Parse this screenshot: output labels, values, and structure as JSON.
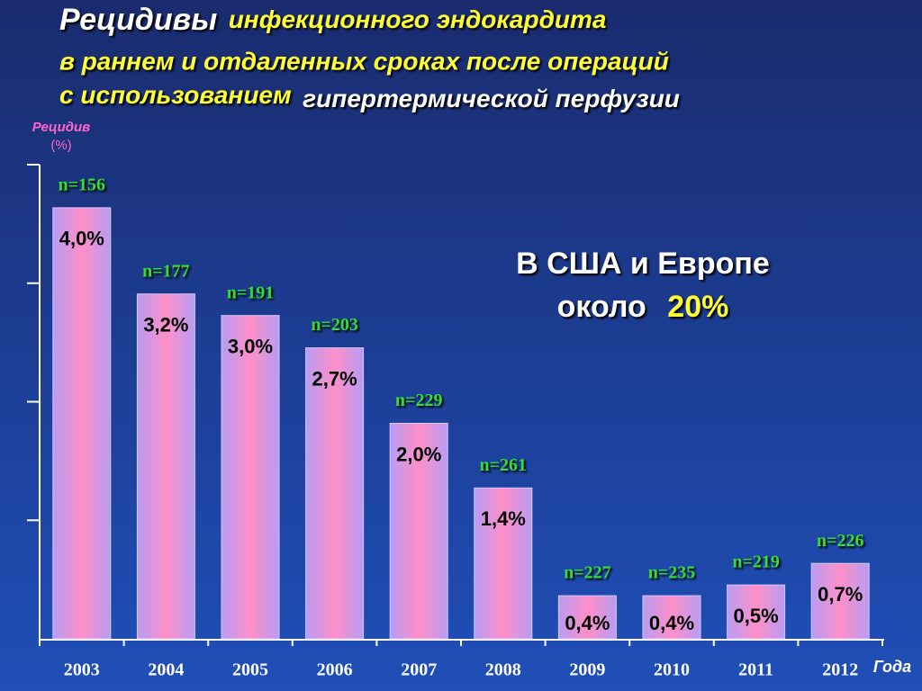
{
  "chart_data": {
    "type": "bar",
    "title": {
      "lines": [
        [
          "Рецидивы",
          "инфекционного эндокардита"
        ],
        [
          "в раннем и отдаленных сроках после операций"
        ],
        [
          "с использованием",
          "гипертермической перфузии"
        ]
      ]
    },
    "y_label": [
      "Рецидив",
      "(%)"
    ],
    "x_label": "Года",
    "categories": [
      "2003",
      "2004",
      "2005",
      "2006",
      "2007",
      "2008",
      "2009",
      "2010",
      "2011",
      "2012"
    ],
    "values": [
      4.0,
      3.2,
      3.0,
      2.7,
      2.0,
      1.4,
      0.4,
      0.4,
      0.5,
      0.7
    ],
    "value_labels": [
      "4,0%",
      "3,2%",
      "3,0%",
      "2,7%",
      "2,0%",
      "1,4%",
      "0,4%",
      "0,4%",
      "0,5%",
      "0,7%"
    ],
    "sample_sizes": [
      "n=156",
      "n=177",
      "n=191",
      "n=203",
      "n=229",
      "n=261",
      "n=227",
      "n=235",
      "n=219",
      "n=226"
    ],
    "annotation": {
      "lines": [
        "В США и Европе",
        "около"
      ],
      "highlight": "20%"
    },
    "ylim": [
      0,
      4.4
    ],
    "yticks": [
      1.1,
      2.2,
      3.3,
      4.4
    ]
  }
}
